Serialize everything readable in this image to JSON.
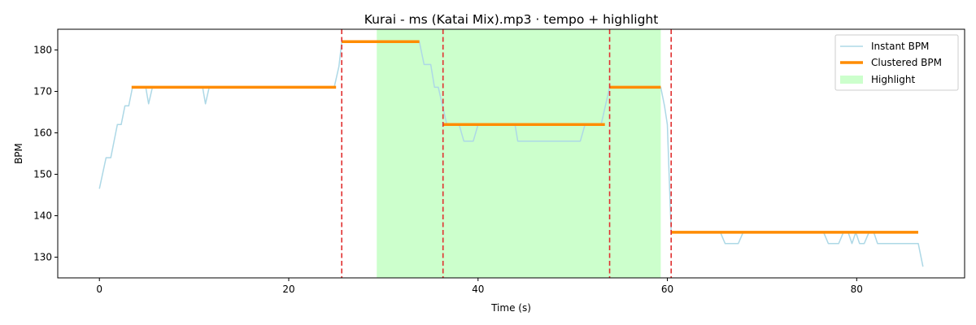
{
  "chart_data": {
    "type": "line",
    "title": "Kurai - ms (Katai Mix).mp3 · tempo + highlight",
    "xlabel": "Time (s)",
    "ylabel": "BPM",
    "xlim": [
      -4.4,
      91.4
    ],
    "ylim": [
      125,
      185
    ],
    "x_ticks": [
      0,
      20,
      40,
      60,
      80
    ],
    "y_ticks": [
      130,
      140,
      150,
      160,
      170,
      180
    ],
    "grid": false,
    "legend_position": "top-right",
    "series": [
      {
        "name": "Instant BPM",
        "color": "#add8e6",
        "points": [
          [
            0.0,
            146.5
          ],
          [
            0.7,
            154
          ],
          [
            1.2,
            154
          ],
          [
            1.9,
            162
          ],
          [
            2.3,
            162
          ],
          [
            2.7,
            166.5
          ],
          [
            3.1,
            166.5
          ],
          [
            3.5,
            171
          ],
          [
            4.9,
            171
          ],
          [
            5.2,
            167
          ],
          [
            5.6,
            171
          ],
          [
            10.9,
            171
          ],
          [
            11.2,
            167
          ],
          [
            11.6,
            171
          ],
          [
            24.8,
            171
          ],
          [
            25.3,
            176
          ],
          [
            25.6,
            182
          ],
          [
            33.8,
            182
          ],
          [
            34.3,
            176.5
          ],
          [
            35.0,
            176.5
          ],
          [
            35.4,
            171
          ],
          [
            35.8,
            171
          ],
          [
            36.3,
            166
          ],
          [
            36.7,
            162
          ],
          [
            38.0,
            162
          ],
          [
            38.5,
            158
          ],
          [
            39.5,
            158
          ],
          [
            40.0,
            162
          ],
          [
            43.9,
            162
          ],
          [
            44.2,
            158
          ],
          [
            50.8,
            158
          ],
          [
            51.3,
            162
          ],
          [
            53.0,
            162
          ],
          [
            53.4,
            166
          ],
          [
            53.9,
            171
          ],
          [
            59.3,
            171
          ],
          [
            59.7,
            166.5
          ],
          [
            60.0,
            162
          ],
          [
            60.4,
            136
          ],
          [
            65.6,
            136
          ],
          [
            66.1,
            133.3
          ],
          [
            67.5,
            133.3
          ],
          [
            68.0,
            136
          ],
          [
            76.5,
            136
          ],
          [
            77.0,
            133.3
          ],
          [
            78.1,
            133.3
          ],
          [
            78.6,
            136
          ],
          [
            79.1,
            136
          ],
          [
            79.5,
            133.3
          ],
          [
            79.9,
            136
          ],
          [
            80.3,
            133.3
          ],
          [
            80.8,
            133.3
          ],
          [
            81.3,
            136
          ],
          [
            81.8,
            136
          ],
          [
            82.2,
            133.3
          ],
          [
            86.5,
            133.3
          ],
          [
            87.0,
            127.7
          ]
        ]
      },
      {
        "name": "Clustered BPM",
        "color": "#ff8c00",
        "segments": [
          [
            3.4,
            25.0,
            171
          ],
          [
            25.6,
            33.8,
            182
          ],
          [
            36.3,
            53.4,
            162
          ],
          [
            53.9,
            59.3,
            171
          ],
          [
            60.4,
            86.5,
            136
          ]
        ]
      }
    ],
    "highlight": {
      "name": "Highlight",
      "color": "#ccffcc",
      "x_start": 29.3,
      "x_end": 59.3
    },
    "boundaries": {
      "color": "#e03030",
      "x": [
        25.6,
        36.3,
        53.9,
        60.4
      ]
    }
  }
}
